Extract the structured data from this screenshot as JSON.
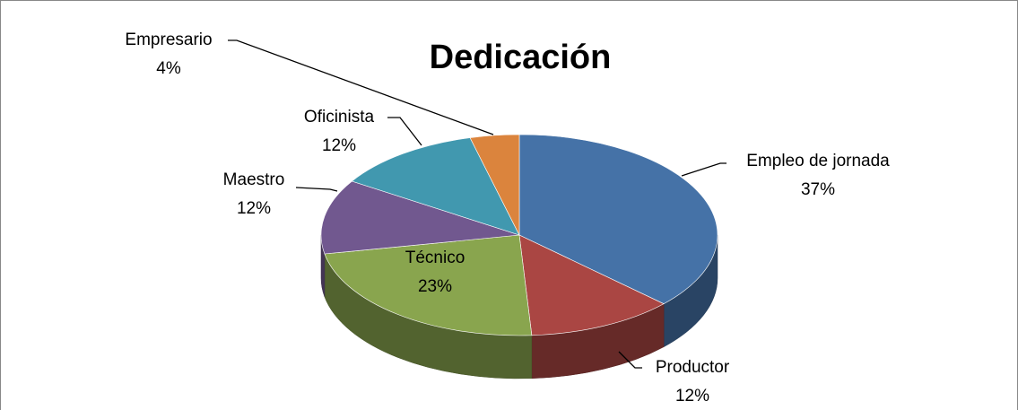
{
  "chart_data": {
    "type": "pie",
    "title": "Dedicación",
    "categories": [
      "Empleo de jornada",
      "Productor",
      "Técnico",
      "Maestro",
      "Oficinista",
      "Empresario"
    ],
    "values": [
      37,
      12,
      23,
      12,
      12,
      4
    ],
    "value_labels": [
      "37%",
      "12%",
      "23%",
      "12%",
      "12%",
      "4%"
    ],
    "colors": [
      "#4572a7",
      "#aa4643",
      "#89a54e",
      "#71588f",
      "#4198af",
      "#db843d"
    ]
  }
}
